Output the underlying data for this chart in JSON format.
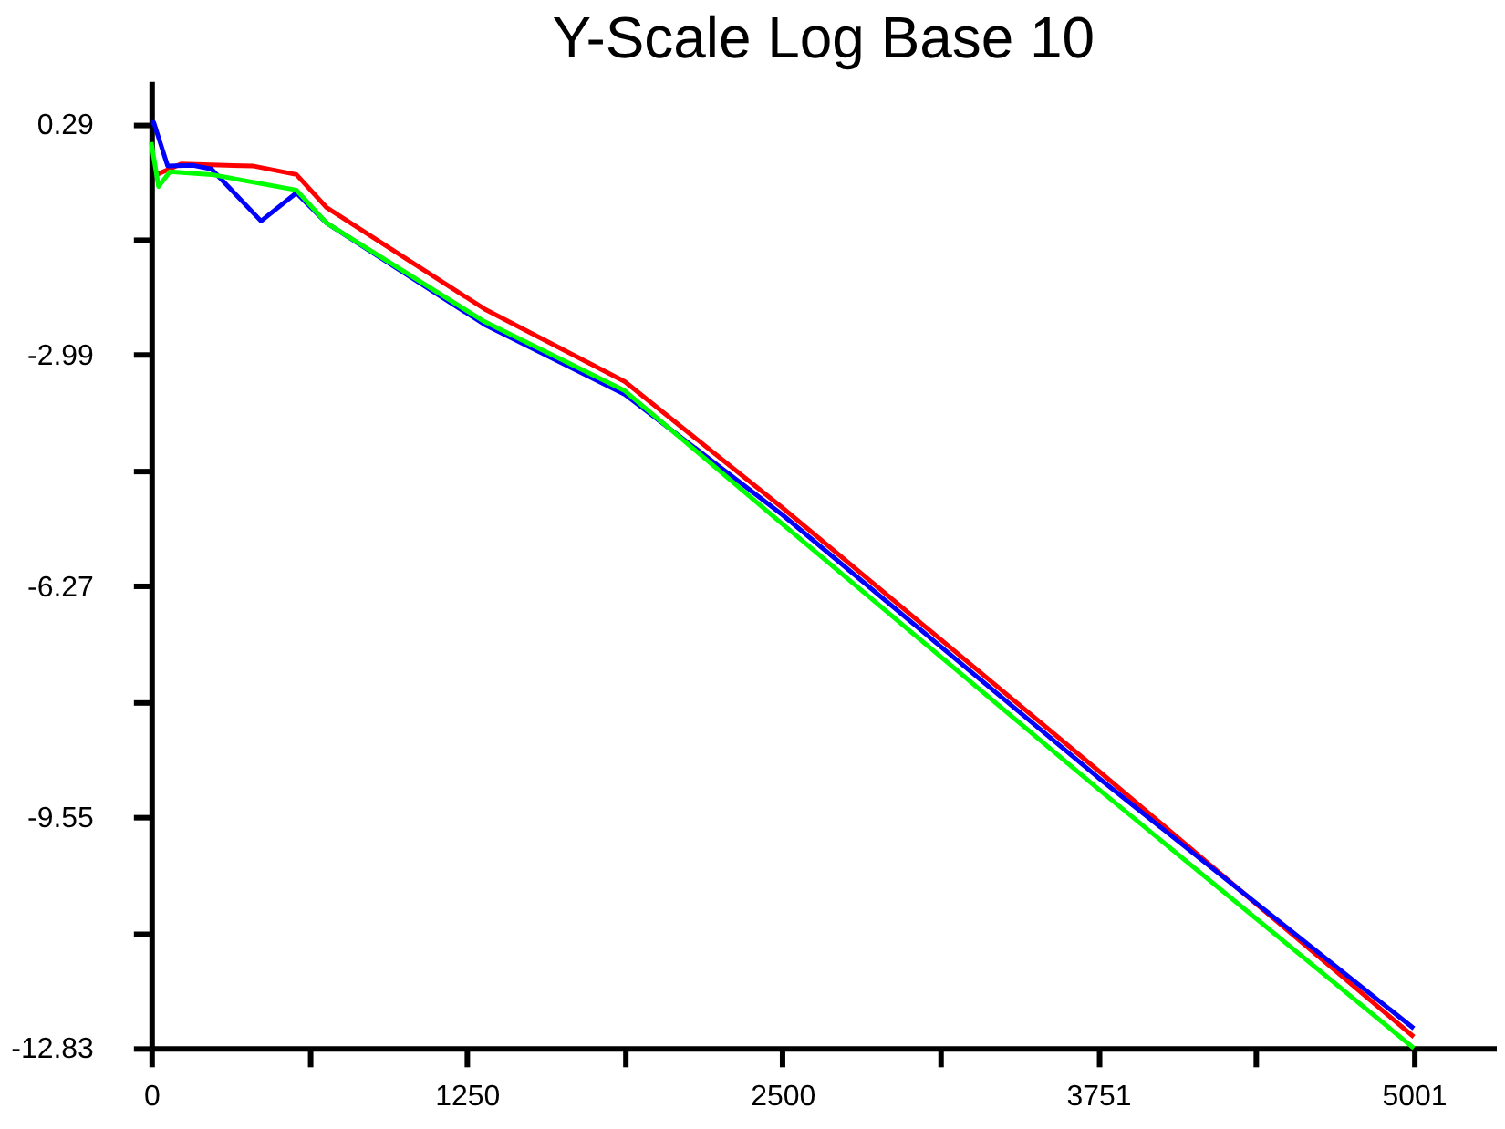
{
  "chart_data": {
    "type": "line",
    "title": "Y-Scale Log Base 10",
    "xlim": [
      0,
      5326
    ],
    "ylim": [
      -12.83,
      0.9
    ],
    "xticks": [
      0,
      {
        "value": 625,
        "label": null
      },
      1250,
      {
        "value": 1875,
        "label": null
      },
      2500,
      {
        "value": 3125.5,
        "label": null
      },
      3751,
      {
        "value": 4376,
        "label": null
      },
      5001
    ],
    "yticks": [
      -12.83,
      {
        "value": -11.19,
        "label": null
      },
      -9.55,
      {
        "value": -7.91,
        "label": null
      },
      -6.27,
      {
        "value": -4.63,
        "label": null
      },
      -2.99,
      {
        "value": -1.35,
        "label": null
      },
      0.29
    ],
    "grid": false,
    "series": [
      {
        "color": "#ff0000",
        "x": [
          22,
          118,
          406,
          575,
          695,
          1321,
          1876,
          2500,
          3751,
          5001
        ],
        "values": [
          -0.43,
          -0.28,
          -0.31,
          -0.43,
          -0.9,
          -2.34,
          -3.37,
          -5.16,
          -8.89,
          -12.67
        ]
      },
      {
        "color": "#0000ff",
        "x": [
          0,
          10,
          65,
          166,
          238,
          435,
          575,
          695,
          1321,
          1876,
          2500,
          3751,
          5001
        ],
        "values": [
          0.31,
          0.31,
          -0.31,
          -0.3,
          -0.35,
          -1.09,
          -0.69,
          -1.12,
          -2.56,
          -3.55,
          -5.26,
          -8.99,
          -12.55
        ]
      },
      {
        "color": "#00ff00",
        "x": [
          0,
          29,
          74,
          238,
          575,
          695,
          1321,
          1876,
          2500,
          3751,
          5001
        ],
        "values": [
          0.03,
          -0.6,
          -0.39,
          -0.43,
          -0.65,
          -1.12,
          -2.52,
          -3.5,
          -5.39,
          -9.15,
          -12.83
        ]
      }
    ]
  }
}
